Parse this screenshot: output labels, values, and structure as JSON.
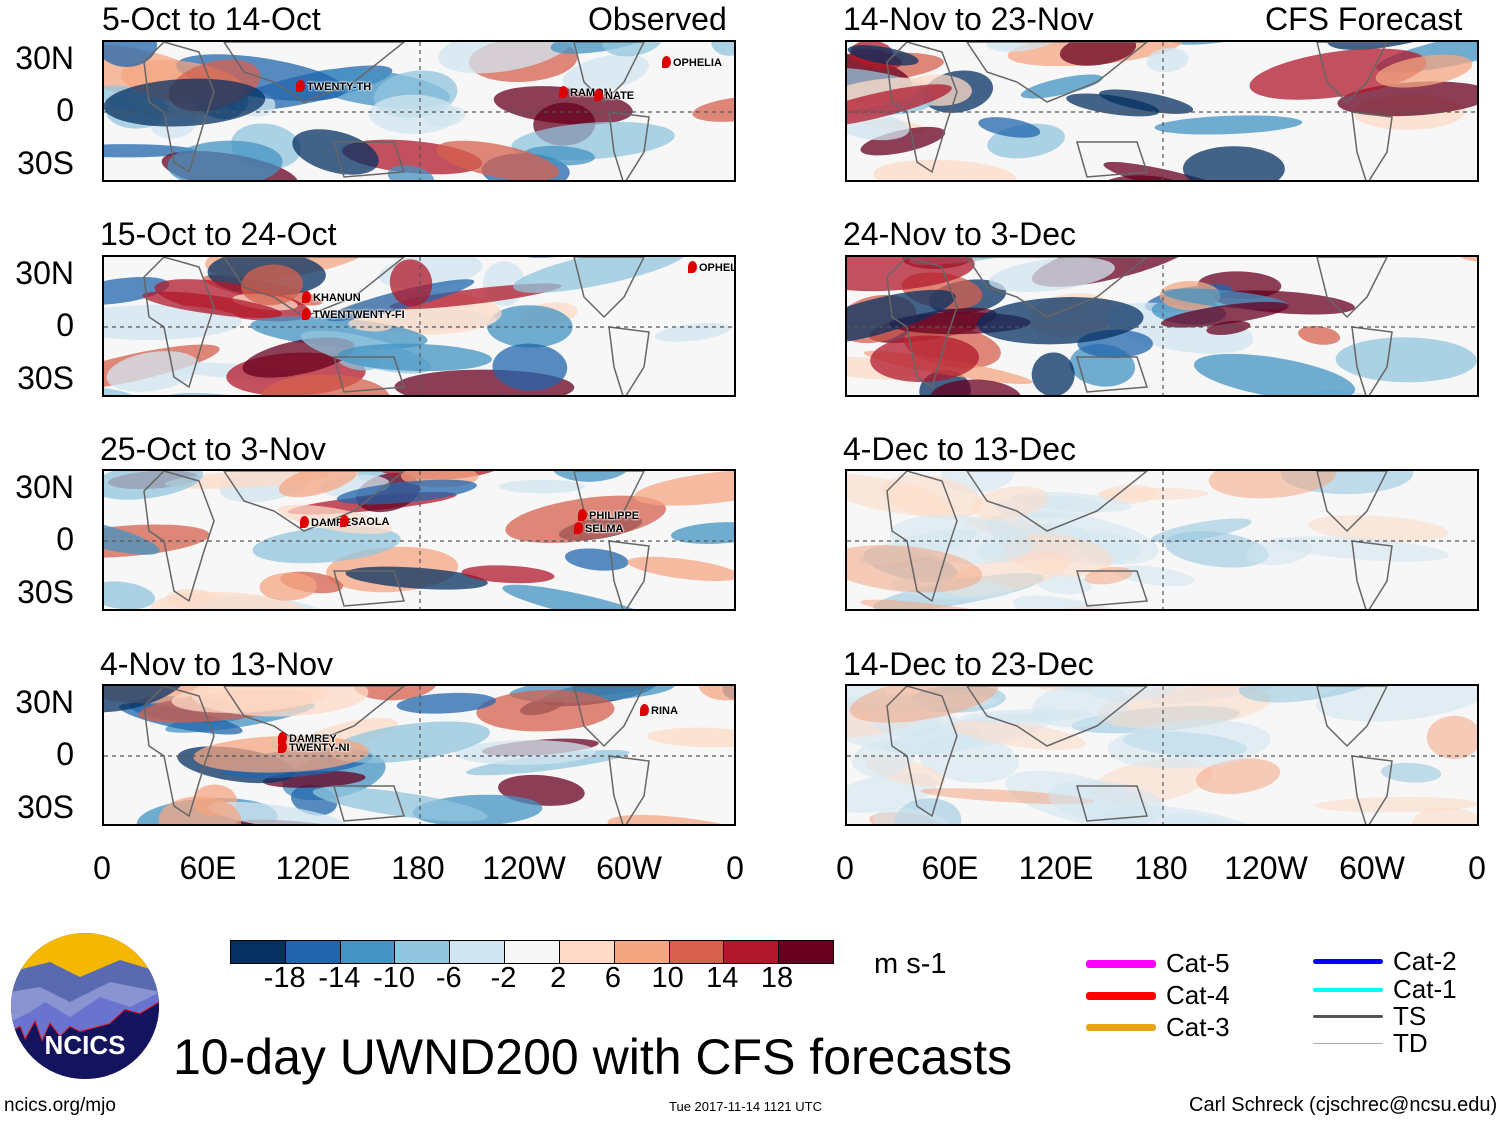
{
  "panels_left": [
    {
      "title": "5-Oct to 14-Oct",
      "tag": "Observed",
      "storms": [
        "TWENTY-TH",
        "RAMON",
        "NATE",
        "OPHELIA"
      ]
    },
    {
      "title": "15-Oct to 24-Oct",
      "storms": [
        "KHANUN",
        "TWENTWENTY-FI",
        "OPHELIA"
      ]
    },
    {
      "title": "25-Oct to 3-Nov",
      "storms": [
        "DAMREY",
        "SAOLA",
        "PHILIPPE",
        "SELMA"
      ]
    },
    {
      "title": "4-Nov to 13-Nov",
      "storms": [
        "DAMREY",
        "TWENTY-NI",
        "RINA"
      ]
    }
  ],
  "panels_right": [
    {
      "title": "14-Nov to 23-Nov",
      "tag": "CFS Forecast"
    },
    {
      "title": "24-Nov to 3-Dec"
    },
    {
      "title": "4-Dec to 13-Dec"
    },
    {
      "title": "14-Dec to 23-Dec"
    }
  ],
  "lat_labels": [
    "30N",
    "0",
    "30S"
  ],
  "lon_labels": [
    "0",
    "60E",
    "120E",
    "180",
    "120W",
    "60W",
    "0"
  ],
  "colorbar": {
    "colors": [
      "#053061",
      "#2166ac",
      "#4393c3",
      "#92c5de",
      "#d1e5f0",
      "#f7f7f7",
      "#fddbc7",
      "#f4a582",
      "#d6604d",
      "#b2182b",
      "#67001f"
    ],
    "ticks": [
      "-18",
      "-14",
      "-10",
      "-6",
      "-2",
      "2",
      "6",
      "10",
      "14",
      "18"
    ],
    "units": "m s-1"
  },
  "legend": [
    {
      "label": "Cat-5",
      "color": "#ff00ff"
    },
    {
      "label": "Cat-4",
      "color": "#ff0000"
    },
    {
      "label": "Cat-3",
      "color": "#e8a317"
    },
    {
      "label": "Cat-2",
      "color": "#0000ff"
    },
    {
      "label": "Cat-1",
      "color": "#00ffff"
    },
    {
      "label": "TS",
      "color": "#555555"
    },
    {
      "label": "TD",
      "color": "#aaaaaa"
    }
  ],
  "logo_text": "NCICS",
  "title": "10-day UWND200 with CFS forecasts",
  "footer": {
    "left": "ncics.org/mjo",
    "center": "Tue 2017-11-14 1121 UTC",
    "right": "Carl Schreck (cjschrec@ncsu.edu)"
  }
}
